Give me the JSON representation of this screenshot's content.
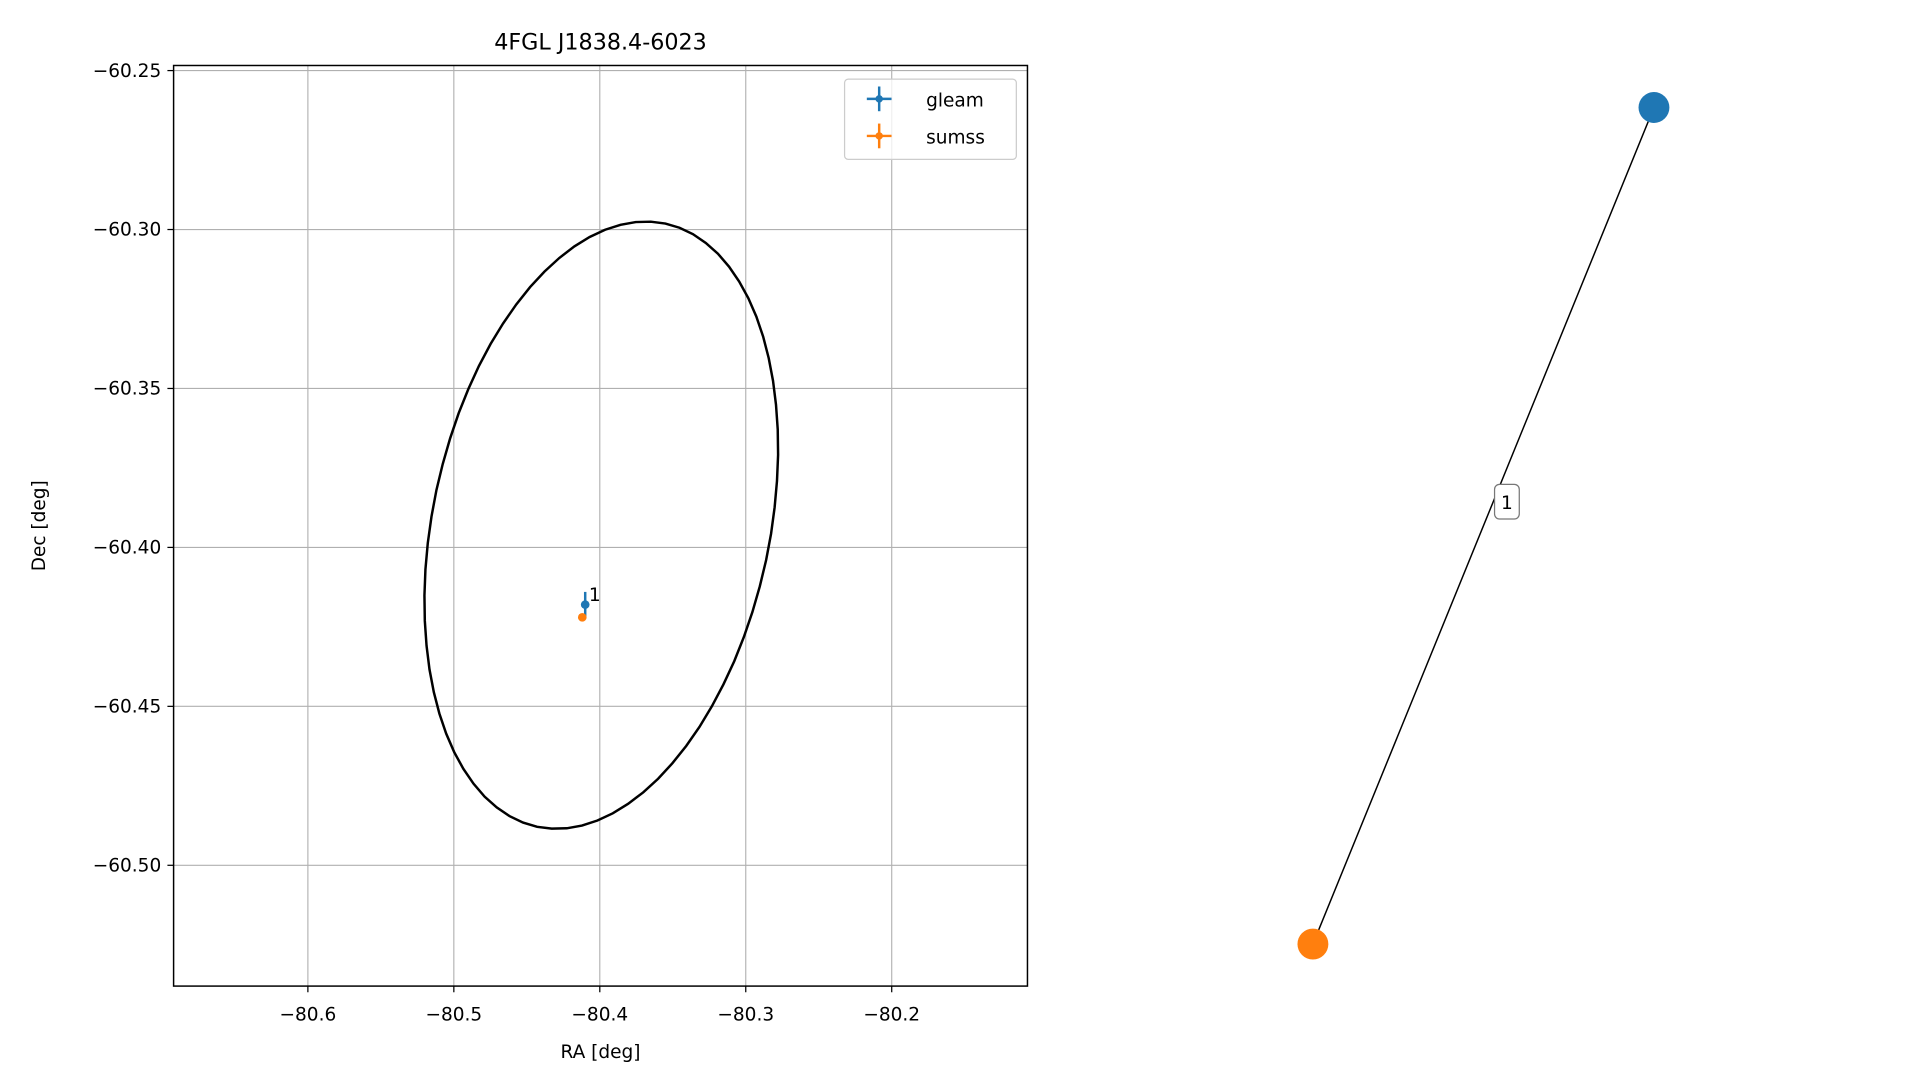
{
  "chart_data": [
    {
      "type": "scatter",
      "title": "4FGL J1838.4-6023",
      "x_label": "RA [deg]",
      "y_label": "Dec [deg]",
      "xlim": [
        -80.692,
        -80.107
      ],
      "ylim": [
        -60.538,
        -60.2484
      ],
      "xticks": [
        {
          "value": -80.6,
          "label": "−80.6"
        },
        {
          "value": -80.5,
          "label": "−80.5"
        },
        {
          "value": -80.4,
          "label": "−80.4"
        },
        {
          "value": -80.3,
          "label": "−80.3"
        },
        {
          "value": -80.2,
          "label": "−80.2"
        }
      ],
      "yticks": [
        {
          "value": -60.25,
          "label": "−60.25"
        },
        {
          "value": -60.3,
          "label": "−60.30"
        },
        {
          "value": -60.35,
          "label": "−60.35"
        },
        {
          "value": -60.4,
          "label": "−60.40"
        },
        {
          "value": -60.45,
          "label": "−60.45"
        },
        {
          "value": -60.5,
          "label": "−60.50"
        }
      ],
      "grid": true,
      "legend": "upper right",
      "series": [
        {
          "name": "gleam",
          "color": "#1f77b4",
          "x": [
            -80.41
          ],
          "values": [
            -60.418
          ],
          "xerr": [
            0.001
          ],
          "yerr": [
            0.004
          ],
          "labels": [
            "1"
          ]
        },
        {
          "name": "sumss",
          "color": "#ff7f0e",
          "x": [
            -80.412
          ],
          "values": [
            -60.422
          ],
          "xerr": [
            0.001
          ],
          "yerr": [
            0.001
          ]
        }
      ],
      "ellipse": {
        "center_x": -80.399,
        "center_y": -60.393,
        "semi_major": 0.097,
        "semi_minor": 0.053,
        "angle": 12,
        "color": "#000000"
      }
    },
    {
      "type": "network",
      "node_colors": [
        "#1f77b4",
        "#ff7f0e"
      ],
      "edges": [
        {
          "label": "1"
        }
      ]
    }
  ]
}
